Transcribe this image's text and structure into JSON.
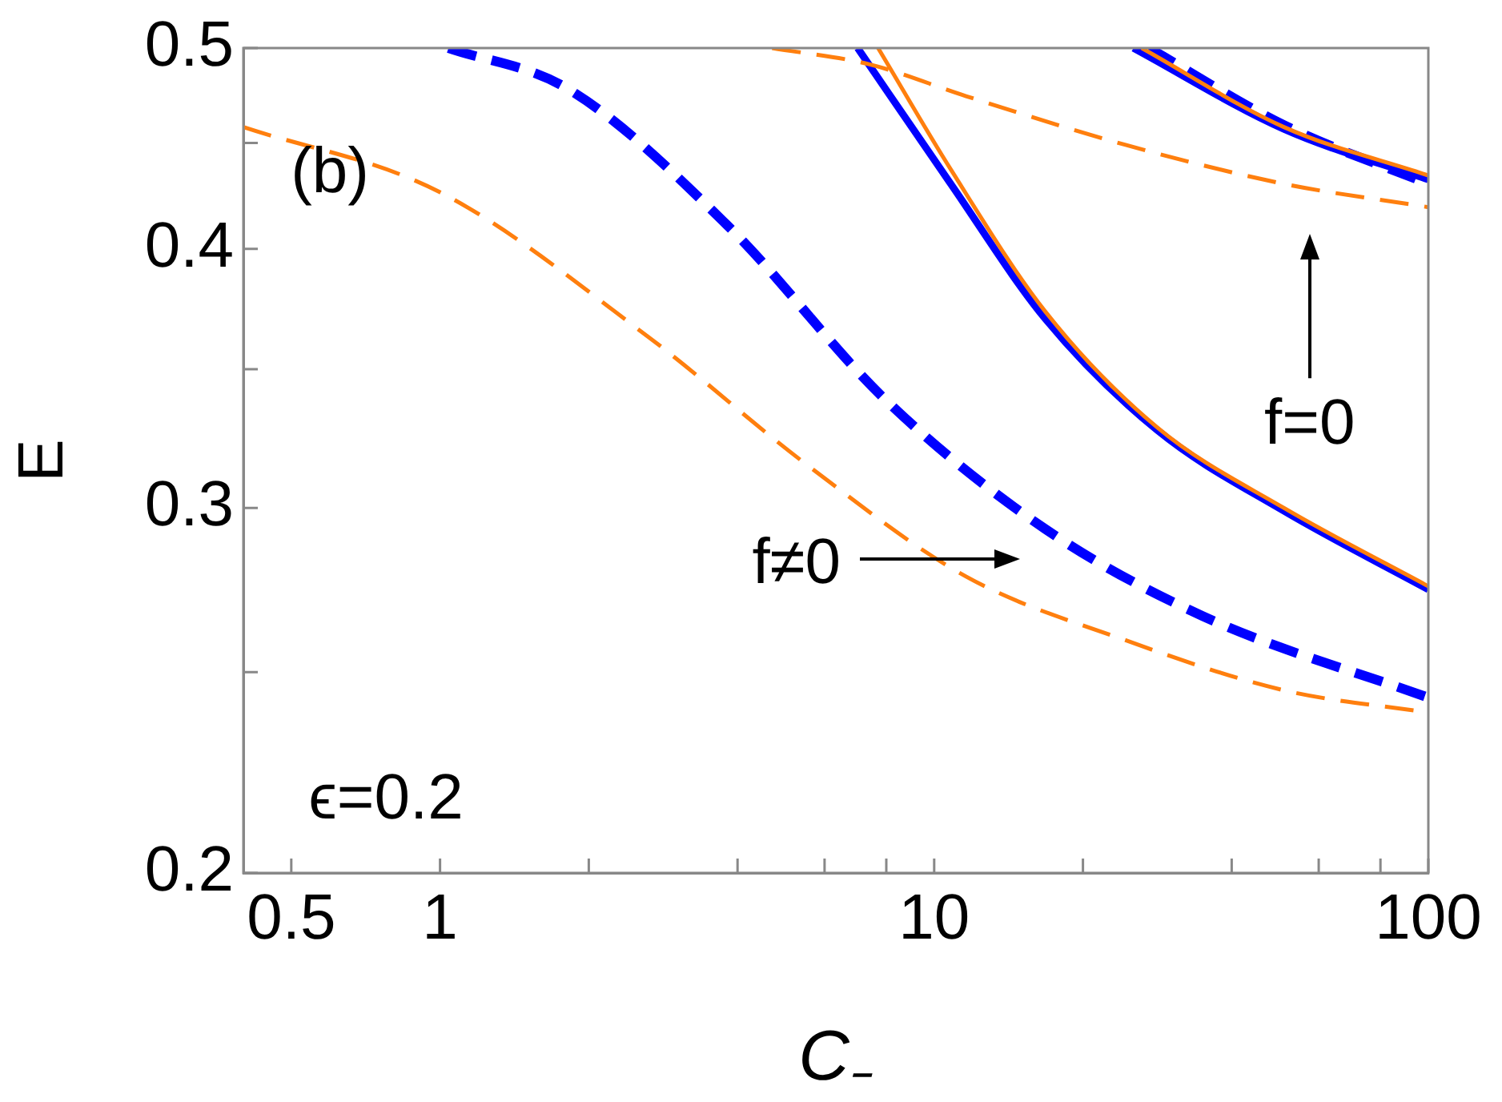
{
  "chart_data": {
    "type": "line",
    "xlabel": "C₋",
    "ylabel": "E",
    "log": "xy",
    "grid": false,
    "legend": false,
    "marker": "none",
    "xlim": [
      0.4,
      100
    ],
    "ylim": [
      0.2,
      0.5
    ],
    "xticks": [
      0.5,
      1,
      {
        "value": 2,
        "label": null
      },
      {
        "value": 4,
        "label": null
      },
      {
        "value": 6,
        "label": null
      },
      {
        "value": 8,
        "label": null
      },
      10,
      {
        "value": 20,
        "label": null
      },
      {
        "value": 40,
        "label": null
      },
      {
        "value": 60,
        "label": null
      },
      {
        "value": 80,
        "label": null
      },
      100
    ],
    "yticks": [
      0.2,
      {
        "value": 0.25,
        "label": null
      },
      0.3,
      {
        "value": 0.35,
        "label": null
      },
      0.4,
      {
        "value": 0.45,
        "label": null
      },
      0.5
    ],
    "series": [
      {
        "color": "#ff7f0e",
        "line_style": "dashed",
        "x": [
          0.4,
          1,
          2.63,
          5.5,
          11.6,
          24.4,
          51,
          100
        ],
        "values": [
          0.458,
          0.426,
          0.363,
          0.315,
          0.278,
          0.259,
          0.245,
          0.239
        ]
      },
      {
        "color": "#0000ff",
        "line_style": "dashed",
        "x": [
          1.04,
          1.81,
          3.8,
          8,
          16.8,
          35,
          100
        ],
        "values": [
          0.5,
          0.478,
          0.411,
          0.338,
          0.293,
          0.266,
          0.243
        ]
      },
      {
        "color": "#0000ff",
        "line_style": "solid",
        "x": [
          7,
          10.8,
          16.8,
          28.3,
          51,
          100
        ],
        "values": [
          0.5,
          0.43,
          0.37,
          0.327,
          0.299,
          0.274
        ]
      },
      {
        "color": "#ff7f0e",
        "line_style": "solid",
        "x": [
          7.7,
          10.8,
          16.8,
          28.3,
          51,
          100
        ],
        "values": [
          0.5,
          0.437,
          0.373,
          0.328,
          0.3,
          0.275
        ]
      },
      {
        "color": "#ff7f0e",
        "line_style": "dashed",
        "x": [
          4.7,
          7.4,
          11.6,
          24.4,
          51,
          100
        ],
        "values": [
          0.5,
          0.491,
          0.474,
          0.449,
          0.43,
          0.419
        ]
      },
      {
        "color": "#0000ff",
        "line_style": "solid",
        "x": [
          25.3,
          51,
          100
        ],
        "values": [
          0.5,
          0.457,
          0.432
        ]
      },
      {
        "color": "#0000ff",
        "line_style": "dashed",
        "x": [
          27.2,
          51,
          100
        ],
        "values": [
          0.5,
          0.459,
          0.43
        ]
      },
      {
        "color": "#ff7f0e",
        "line_style": "solid",
        "x": [
          26.3,
          51,
          100
        ],
        "values": [
          0.5,
          0.458,
          0.434
        ]
      }
    ],
    "annotations": [
      "(b)",
      "ϵ=0.2",
      "f=0",
      "f≠0"
    ]
  }
}
